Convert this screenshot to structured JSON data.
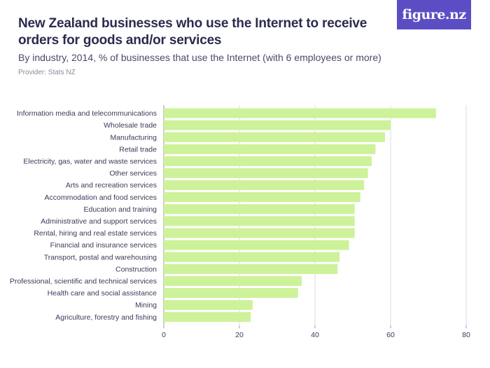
{
  "header": {
    "title": "New Zealand businesses who use the Internet to receive orders for goods and/or services",
    "subtitle": "By industry, 2014, % of businesses that use the Internet (with 6 employees or more)",
    "provider": "Provider: Stats NZ"
  },
  "logo": {
    "text": "figure.nz",
    "color": "#5b4ec4"
  },
  "chart_data": {
    "type": "bar",
    "orientation": "horizontal",
    "bar_color": "#cdf29a",
    "categories": [
      "Information media and telecommunications",
      "Wholesale trade",
      "Manufacturing",
      "Retail trade",
      "Electricity, gas, water and waste services",
      "Other services",
      "Arts and recreation services",
      "Accommodation and food services",
      "Education and training",
      "Administrative and support services",
      "Rental, hiring and real estate services",
      "Financial and insurance services",
      "Transport, postal and warehousing",
      "Construction",
      "Professional, scientific and technical services",
      "Health care and social assistance",
      "Mining",
      "Agriculture, forestry and fishing"
    ],
    "values": [
      72,
      60,
      58.5,
      56,
      55,
      54,
      53,
      52,
      50.5,
      50.5,
      50.5,
      49,
      46.5,
      46,
      36.5,
      35.5,
      23.5,
      23
    ],
    "xlim": [
      0,
      80
    ],
    "xticks": [
      "0",
      "20",
      "40",
      "60",
      "80"
    ],
    "grid": "vertical"
  }
}
